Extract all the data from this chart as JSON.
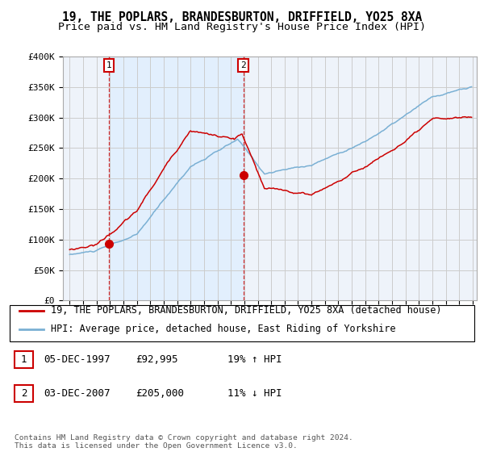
{
  "title": "19, THE POPLARS, BRANDESBURTON, DRIFFIELD, YO25 8XA",
  "subtitle": "Price paid vs. HM Land Registry's House Price Index (HPI)",
  "ylim": [
    0,
    400000
  ],
  "yticks": [
    0,
    50000,
    100000,
    150000,
    200000,
    250000,
    300000,
    350000,
    400000
  ],
  "ytick_labels": [
    "£0",
    "£50K",
    "£100K",
    "£150K",
    "£200K",
    "£250K",
    "£300K",
    "£350K",
    "£400K"
  ],
  "xlim_start": 1995,
  "xlim_end": 2025,
  "background_color": "#ffffff",
  "plot_bg_color": "#f0f5ff",
  "shade_color": "#ddeeff",
  "grid_color": "#cccccc",
  "hpi_color": "#7ab0d4",
  "price_color": "#cc0000",
  "sale1_year": 1997.92,
  "sale1_price": 92995,
  "sale1_label": "1",
  "sale1_date": "05-DEC-1997",
  "sale1_price_str": "£92,995",
  "sale1_hpi_pct": "19% ↑ HPI",
  "sale2_year": 2007.92,
  "sale2_price": 205000,
  "sale2_label": "2",
  "sale2_date": "03-DEC-2007",
  "sale2_price_str": "£205,000",
  "sale2_hpi_pct": "11% ↓ HPI",
  "legend_line1": "19, THE POPLARS, BRANDESBURTON, DRIFFIELD, YO25 8XA (detached house)",
  "legend_line2": "HPI: Average price, detached house, East Riding of Yorkshire",
  "footer": "Contains HM Land Registry data © Crown copyright and database right 2024.\nThis data is licensed under the Open Government Licence v3.0.",
  "title_fontsize": 10.5,
  "subtitle_fontsize": 9.5,
  "axis_fontsize": 8,
  "legend_fontsize": 8.5
}
